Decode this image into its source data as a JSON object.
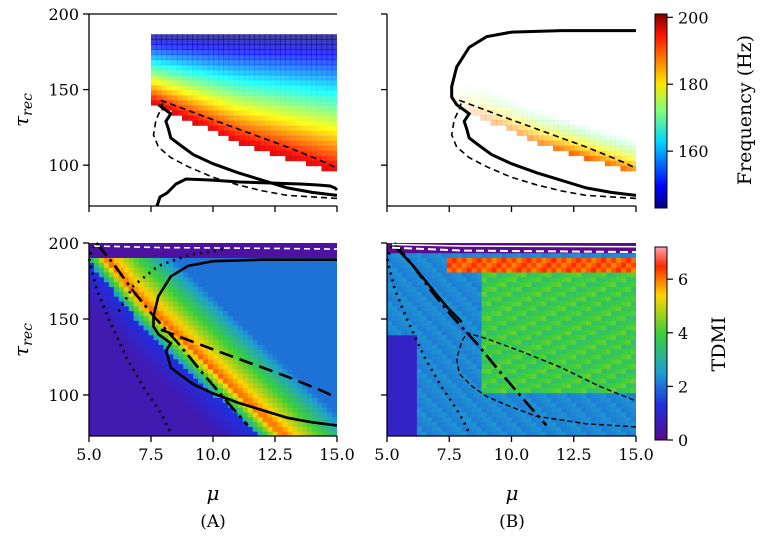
{
  "chart_data": [
    {
      "type": "heatmap",
      "panel": "top-left",
      "title": "",
      "xlabel": "",
      "ylabel": "τ_rec",
      "xlim": [
        5.0,
        15.0
      ],
      "ylim": [
        73,
        200
      ],
      "yticks": [
        "100",
        "150",
        "200"
      ],
      "colorbar": {
        "label": "Frequency (Hz)",
        "range": [
          143,
          201
        ],
        "ticks": [
          "160",
          "180",
          "200"
        ],
        "colormap": "jet"
      },
      "contours": {
        "solid": "oscillation region boundary",
        "dashed": "inner region boundary"
      },
      "trend": "frequency decreases with increasing tau_rec; ~145 Hz at top, ~195 Hz near bottom boundary"
    },
    {
      "type": "heatmap",
      "panel": "top-right",
      "title": "",
      "xlabel": "",
      "ylabel": "",
      "xlim": [
        5.0,
        15.0
      ],
      "ylim": [
        73,
        200
      ],
      "trend": "mostly near-white low saturation, orange/red near bottom boundary"
    },
    {
      "type": "heatmap",
      "panel": "bottom-left",
      "xlabel": "μ",
      "ylabel": "τ_rec",
      "xlim": [
        5.0,
        15.0
      ],
      "ylim": [
        73,
        200
      ],
      "xticks": [
        "5.0",
        "7.5",
        "10.0",
        "12.5",
        "15.0"
      ],
      "yticks": [
        "100",
        "150",
        "200"
      ],
      "colorbar": {
        "label": "TDMI",
        "range": [
          0,
          7.2
        ],
        "ticks": [
          "0",
          "2",
          "4",
          "6"
        ],
        "colormap": "jet"
      },
      "trend": "red ridge (TDMI ~6) along a curved band from (5.3,195) to (11,75); blue/cyan elsewhere"
    },
    {
      "type": "heatmap",
      "panel": "bottom-right",
      "xlabel": "μ",
      "ylabel": "",
      "xlim": [
        5.0,
        15.0
      ],
      "ylim": [
        73,
        200
      ],
      "xticks": [
        "5.0",
        "7.5",
        "10.0",
        "12.5",
        "15.0"
      ],
      "trend": "green pixelated region (TDMI ~4-5) at high mu, red band near tau_rec 185"
    }
  ],
  "labels": {
    "panel_a": "(A)",
    "panel_b": "(B)",
    "xlabel": "μ",
    "ylabel": "τrec",
    "freq_label": "Frequency (Hz)",
    "tdmi_label": "TDMI"
  }
}
